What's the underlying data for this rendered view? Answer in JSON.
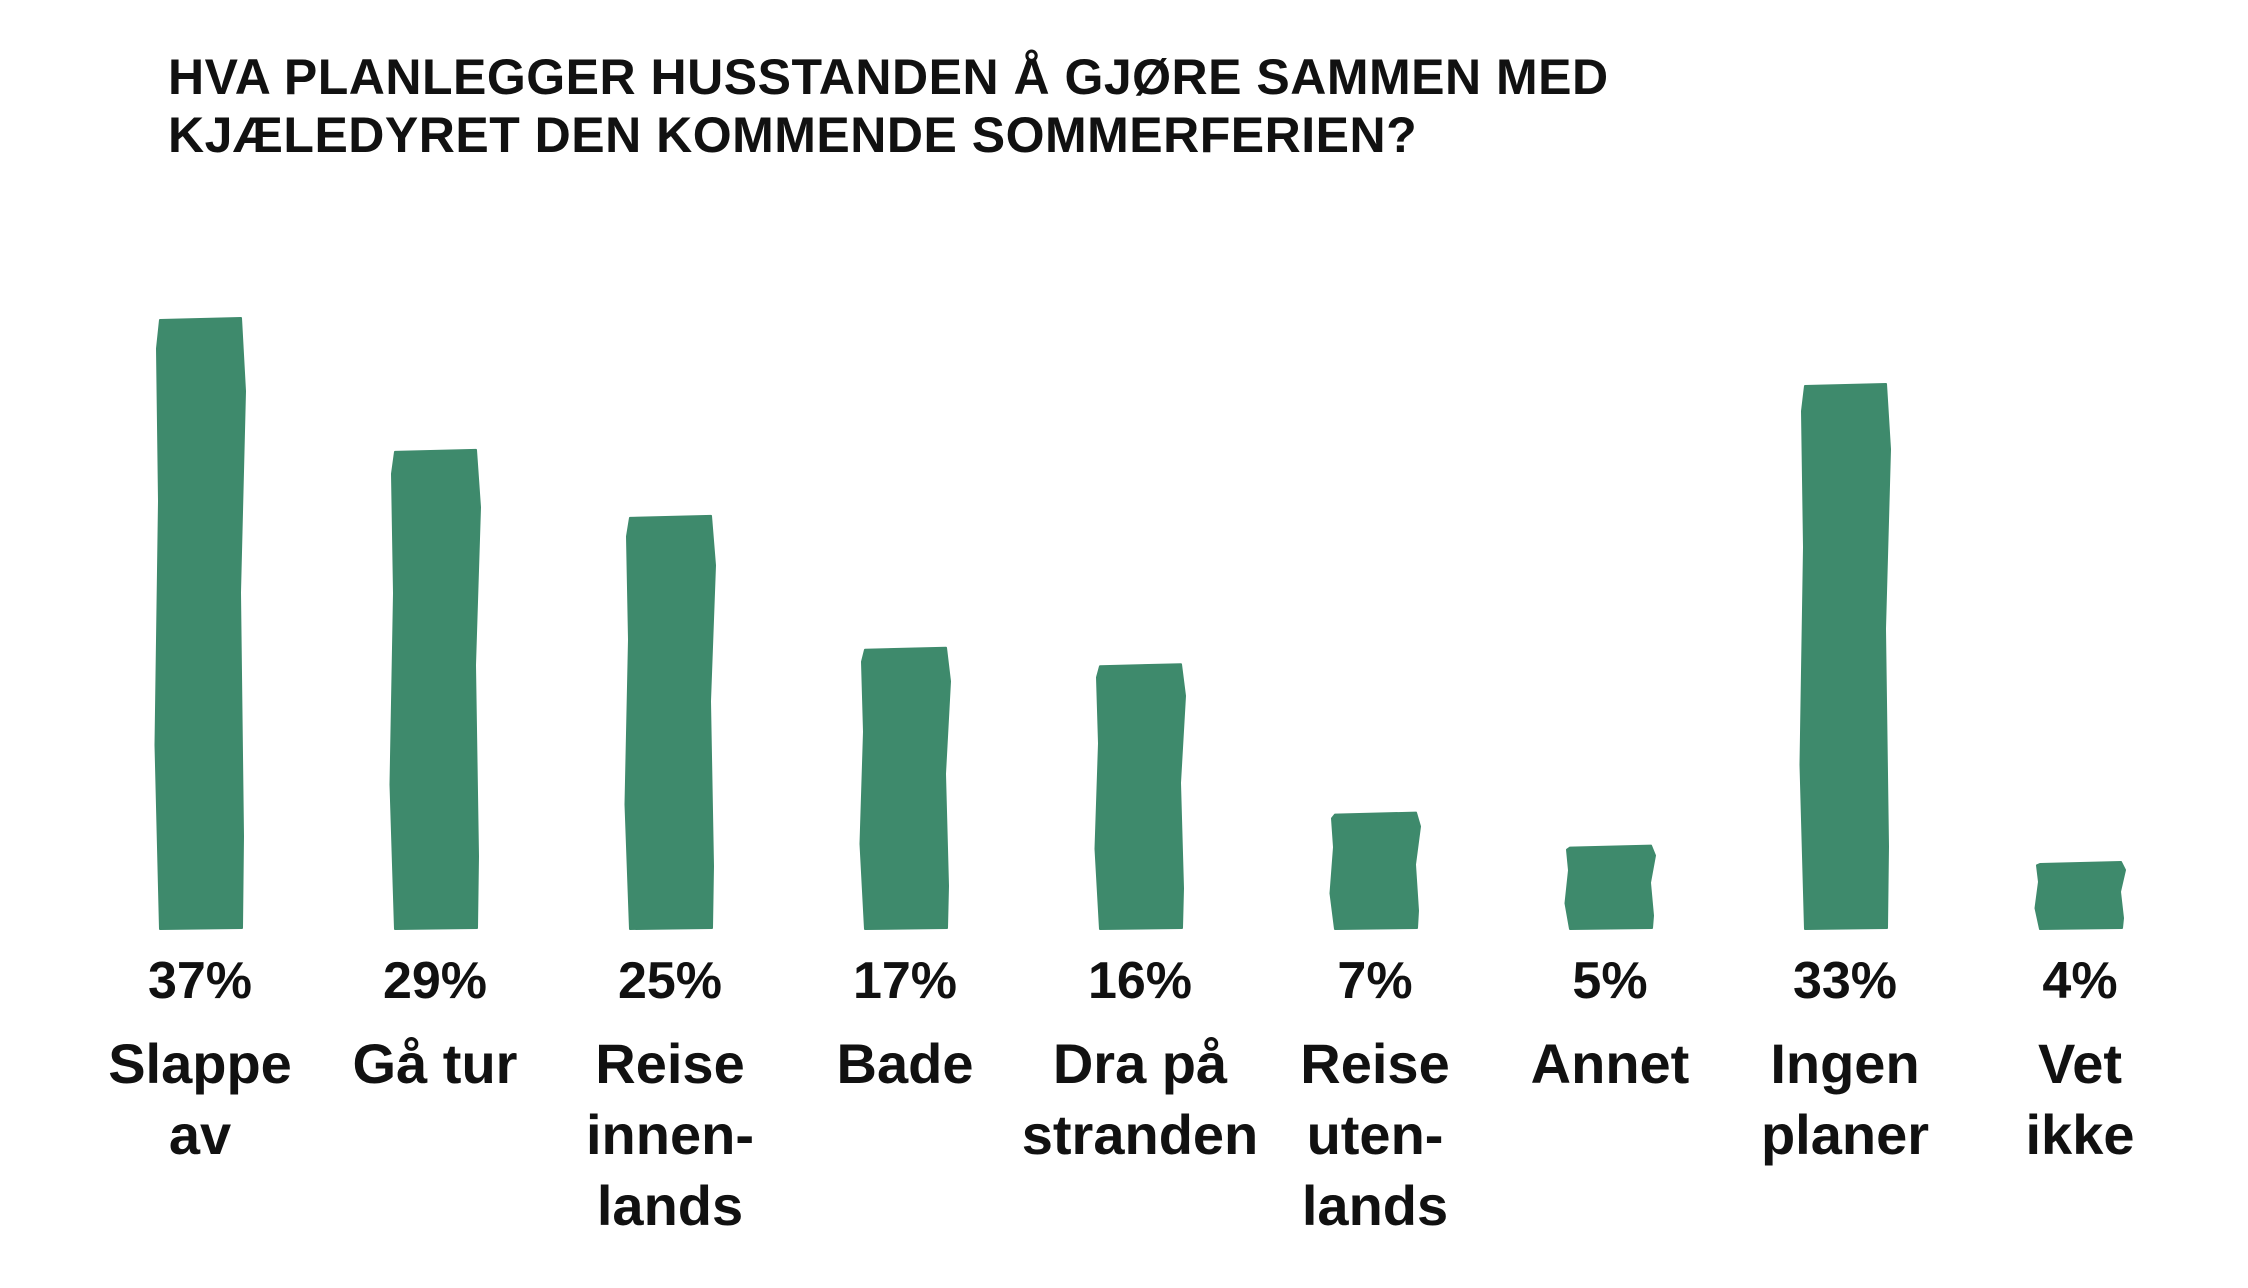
{
  "chart_data": {
    "type": "bar",
    "title": [
      "HVA PLANLEGGER HUSSTANDEN Å GJØRE SAMMEN MED",
      "KJÆLEDYRET DEN KOMMENDE SOMMERFERIEN?"
    ],
    "categories": [
      [
        "Slappe",
        "av"
      ],
      [
        "Gå tur"
      ],
      [
        "Reise",
        "innen-",
        "lands"
      ],
      [
        "Bade"
      ],
      [
        "Dra på",
        "stranden"
      ],
      [
        "Reise",
        "uten-",
        "lands"
      ],
      [
        "Annet"
      ],
      [
        "Ingen",
        "planer"
      ],
      [
        "Vet",
        "ikke"
      ]
    ],
    "values": [
      37,
      29,
      25,
      17,
      16,
      7,
      5,
      33,
      4
    ],
    "value_labels": [
      "37%",
      "29%",
      "25%",
      "17%",
      "16%",
      "7%",
      "5%",
      "33%",
      "4%"
    ],
    "unit": "%",
    "ylim": [
      0,
      37
    ],
    "grid": false,
    "legend": "none",
    "bar_color": "#3e8a6c"
  }
}
